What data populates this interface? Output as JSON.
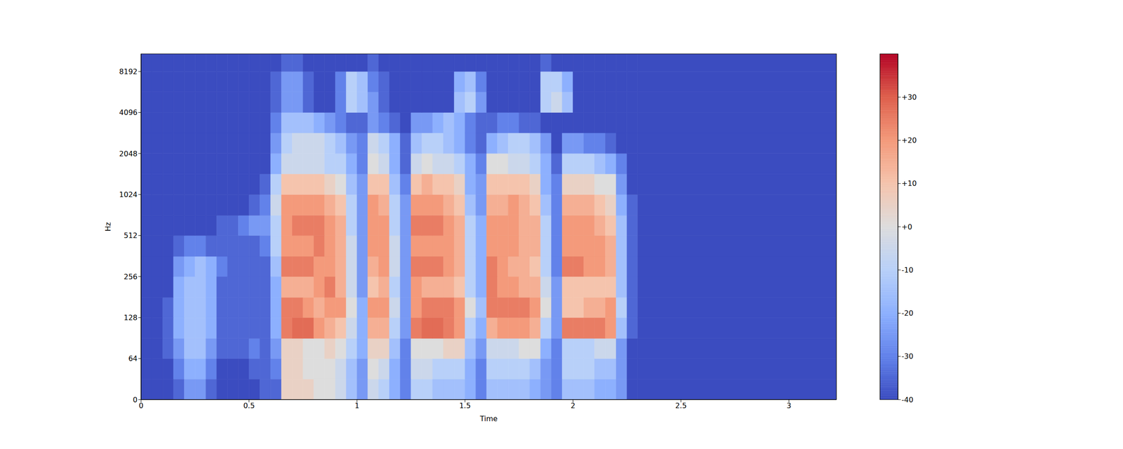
{
  "chart_data": {
    "type": "heatmap",
    "x_label": "Time",
    "y_label": "Hz",
    "log": "y",
    "xlim": [
      0,
      3.22
    ],
    "xticks": [
      0,
      0.5,
      1,
      1.5,
      2,
      2.5,
      3
    ],
    "ylim": [
      0,
      11025
    ],
    "yticks": [
      0,
      64,
      128,
      256,
      512,
      1024,
      2048,
      4096,
      8192
    ],
    "x_edges": [
      0,
      0.05,
      0.1,
      0.15,
      0.2,
      0.25,
      0.3,
      0.35,
      0.4,
      0.45,
      0.5,
      0.55,
      0.6,
      0.65,
      0.7,
      0.75,
      0.8,
      0.85,
      0.9,
      0.95,
      1,
      1.05,
      1.1,
      1.15,
      1.2,
      1.25,
      1.3,
      1.35,
      1.4,
      1.45,
      1.5,
      1.55,
      1.6,
      1.65,
      1.7,
      1.75,
      1.8,
      1.85,
      1.9,
      1.95,
      2,
      2.05,
      2.1,
      2.15,
      2.2,
      2.25,
      2.3,
      3.22
    ],
    "y_edges": [
      0,
      32,
      64,
      90,
      128,
      180,
      256,
      360,
      512,
      720,
      1024,
      1450,
      2048,
      2900,
      4096,
      5800,
      8192,
      11025
    ],
    "cells": [
      [
        -40,
        -40,
        -40,
        -35,
        -25,
        -25,
        -35,
        -40,
        -40,
        -40,
        -40,
        -35,
        -35,
        5,
        5,
        5,
        0,
        0,
        -5,
        -15,
        -25,
        -5,
        -10,
        -20,
        -30,
        -10,
        -10,
        -15,
        -15,
        -15,
        -20,
        -30,
        -15,
        -15,
        -15,
        -15,
        -20,
        -25,
        -30,
        -15,
        -15,
        -15,
        -20,
        -20,
        -25,
        -40,
        -40
      ],
      [
        -40,
        -40,
        -40,
        -30,
        -20,
        -20,
        -30,
        -40,
        -40,
        -40,
        -35,
        -35,
        -30,
        5,
        5,
        0,
        0,
        0,
        -5,
        -15,
        -25,
        0,
        -5,
        -20,
        -30,
        -5,
        -5,
        -10,
        -10,
        -10,
        -20,
        -30,
        -10,
        -10,
        -10,
        -10,
        -15,
        -25,
        -30,
        -10,
        -10,
        -10,
        -15,
        -15,
        -25,
        -40,
        -40
      ],
      [
        -40,
        -40,
        -35,
        -25,
        -15,
        -15,
        -25,
        -35,
        -35,
        -35,
        -30,
        -35,
        -25,
        5,
        5,
        0,
        0,
        5,
        0,
        -10,
        -20,
        5,
        5,
        -15,
        -30,
        0,
        0,
        0,
        5,
        5,
        -15,
        -25,
        -5,
        -5,
        -5,
        0,
        0,
        -20,
        -30,
        -10,
        -10,
        -10,
        -5,
        -5,
        -25,
        -40,
        -40
      ],
      [
        -40,
        -40,
        -35,
        -20,
        -15,
        -15,
        -20,
        -35,
        -35,
        -35,
        -35,
        -35,
        -20,
        25,
        28,
        28,
        20,
        15,
        10,
        -5,
        -20,
        15,
        15,
        -10,
        -25,
        25,
        28,
        28,
        25,
        20,
        -10,
        -20,
        15,
        20,
        20,
        20,
        15,
        -10,
        -25,
        25,
        25,
        25,
        25,
        20,
        -15,
        -35,
        -40
      ],
      [
        -40,
        -40,
        -35,
        -20,
        -15,
        -15,
        -20,
        -35,
        -35,
        -35,
        -35,
        -35,
        -20,
        25,
        25,
        20,
        15,
        20,
        20,
        0,
        -20,
        20,
        20,
        -5,
        -25,
        20,
        25,
        25,
        25,
        20,
        0,
        -15,
        25,
        25,
        25,
        25,
        20,
        0,
        -25,
        10,
        10,
        15,
        15,
        20,
        -10,
        -35,
        -40
      ],
      [
        -40,
        -40,
        -40,
        -20,
        -15,
        -15,
        -20,
        -35,
        -35,
        -35,
        -35,
        -35,
        -20,
        15,
        15,
        15,
        20,
        25,
        15,
        -5,
        -25,
        10,
        15,
        -10,
        -25,
        20,
        15,
        15,
        15,
        10,
        -10,
        -20,
        25,
        20,
        20,
        15,
        15,
        -5,
        -25,
        10,
        10,
        10,
        10,
        10,
        -15,
        -35,
        -40
      ],
      [
        -40,
        -40,
        -40,
        -25,
        -20,
        -15,
        -20,
        -30,
        -35,
        -35,
        -35,
        -35,
        -15,
        25,
        25,
        25,
        20,
        20,
        15,
        -5,
        -25,
        15,
        20,
        -5,
        -25,
        25,
        25,
        25,
        20,
        15,
        -10,
        -20,
        25,
        20,
        15,
        15,
        10,
        -10,
        -30,
        25,
        25,
        20,
        20,
        15,
        -15,
        -35,
        -40
      ],
      [
        -40,
        -40,
        -40,
        -35,
        -30,
        -30,
        -35,
        -35,
        -35,
        -35,
        -35,
        -30,
        -10,
        20,
        20,
        20,
        25,
        20,
        15,
        -5,
        -25,
        20,
        20,
        -5,
        -25,
        20,
        20,
        20,
        20,
        15,
        -10,
        -20,
        20,
        20,
        20,
        15,
        15,
        -10,
        -30,
        20,
        20,
        20,
        20,
        15,
        -15,
        -35,
        -40
      ],
      [
        -40,
        -40,
        -40,
        -40,
        -40,
        -40,
        -40,
        -35,
        -35,
        -30,
        -25,
        -25,
        -10,
        20,
        25,
        25,
        25,
        20,
        15,
        -10,
        -25,
        20,
        20,
        -10,
        -25,
        25,
        25,
        25,
        20,
        15,
        -10,
        -20,
        20,
        20,
        20,
        15,
        15,
        -10,
        -30,
        20,
        20,
        20,
        15,
        10,
        -15,
        -35,
        -40
      ],
      [
        -40,
        -40,
        -40,
        -40,
        -40,
        -40,
        -40,
        -40,
        -40,
        -40,
        -35,
        -30,
        -5,
        20,
        20,
        20,
        20,
        15,
        10,
        -10,
        -25,
        20,
        15,
        -10,
        -25,
        20,
        20,
        20,
        15,
        10,
        -15,
        -25,
        15,
        15,
        20,
        15,
        10,
        -15,
        -30,
        15,
        15,
        15,
        10,
        5,
        -20,
        -35,
        -40
      ],
      [
        -40,
        -40,
        -40,
        -40,
        -40,
        -40,
        -40,
        -40,
        -40,
        -40,
        -40,
        -35,
        -10,
        10,
        10,
        10,
        10,
        5,
        0,
        -15,
        -25,
        10,
        10,
        -15,
        -30,
        10,
        15,
        10,
        10,
        5,
        -20,
        -25,
        10,
        10,
        10,
        10,
        5,
        -20,
        -30,
        5,
        5,
        5,
        0,
        0,
        -25,
        -40,
        -40
      ],
      [
        -40,
        -40,
        -40,
        -40,
        -40,
        -40,
        -40,
        -40,
        -40,
        -40,
        -40,
        -40,
        -20,
        -5,
        -5,
        -5,
        -5,
        -10,
        -10,
        -20,
        -30,
        0,
        -5,
        -20,
        -35,
        -5,
        0,
        -5,
        -5,
        -10,
        -20,
        -30,
        0,
        0,
        -5,
        -5,
        -10,
        -20,
        -35,
        -10,
        -10,
        -10,
        -15,
        -20,
        -30,
        -40,
        -40
      ],
      [
        -40,
        -40,
        -40,
        -40,
        -40,
        -40,
        -40,
        -40,
        -40,
        -40,
        -40,
        -40,
        -25,
        -10,
        -5,
        -5,
        -5,
        -10,
        -15,
        -25,
        -30,
        -5,
        -10,
        -20,
        -35,
        -15,
        -10,
        -10,
        -15,
        -20,
        -30,
        -35,
        -20,
        -15,
        -10,
        -10,
        -15,
        -25,
        -40,
        -25,
        -25,
        -30,
        -30,
        -35,
        -40,
        -40,
        -40
      ],
      [
        -40,
        -40,
        -40,
        -40,
        -40,
        -40,
        -40,
        -40,
        -40,
        -40,
        -40,
        -40,
        -30,
        -15,
        -15,
        -15,
        -20,
        -25,
        -30,
        -35,
        -35,
        -25,
        -30,
        -35,
        -40,
        -25,
        -25,
        -20,
        -15,
        -20,
        -30,
        -35,
        -35,
        -30,
        -30,
        -35,
        -35,
        -40,
        -40,
        -40,
        -40,
        -40,
        -40,
        -40,
        -40,
        -40,
        -40
      ],
      [
        -40,
        -40,
        -40,
        -40,
        -40,
        -40,
        -40,
        -40,
        -40,
        -40,
        -40,
        -40,
        -35,
        -25,
        -25,
        -35,
        -40,
        -40,
        -30,
        -10,
        -15,
        -25,
        -35,
        -40,
        -40,
        -40,
        -40,
        -40,
        -40,
        -15,
        -10,
        -25,
        -40,
        -40,
        -40,
        -40,
        -40,
        -10,
        -5,
        -15,
        -40,
        -40,
        -40,
        -40,
        -40,
        -40,
        -40
      ],
      [
        -40,
        -40,
        -40,
        -40,
        -40,
        -40,
        -40,
        -40,
        -40,
        -40,
        -40,
        -40,
        -35,
        -25,
        -25,
        -35,
        -40,
        -40,
        -30,
        -10,
        -15,
        -30,
        -35,
        -40,
        -40,
        -40,
        -40,
        -40,
        -40,
        -20,
        -15,
        -30,
        -40,
        -40,
        -40,
        -40,
        -40,
        -10,
        -10,
        -20,
        -40,
        -40,
        -40,
        -40,
        -40,
        -40,
        -40
      ],
      [
        -40,
        -40,
        -40,
        -40,
        -40,
        -40,
        -40,
        -40,
        -40,
        -40,
        -40,
        -40,
        -40,
        -35,
        -35,
        -40,
        -40,
        -40,
        -40,
        -40,
        -40,
        -35,
        -40,
        -40,
        -40,
        -40,
        -40,
        -40,
        -40,
        -40,
        -40,
        -40,
        -40,
        -40,
        -40,
        -40,
        -40,
        -35,
        -40,
        -40,
        -40,
        -40,
        -40,
        -40,
        -40,
        -40,
        -40
      ]
    ],
    "colorbar": {
      "range": [
        -40,
        40
      ],
      "ticks": [
        {
          "value": 30,
          "label": "+30"
        },
        {
          "value": 20,
          "label": "+20"
        },
        {
          "value": 10,
          "label": "+10"
        },
        {
          "value": 0,
          "label": "+0"
        },
        -10,
        -20,
        -30,
        -40
      ]
    }
  }
}
